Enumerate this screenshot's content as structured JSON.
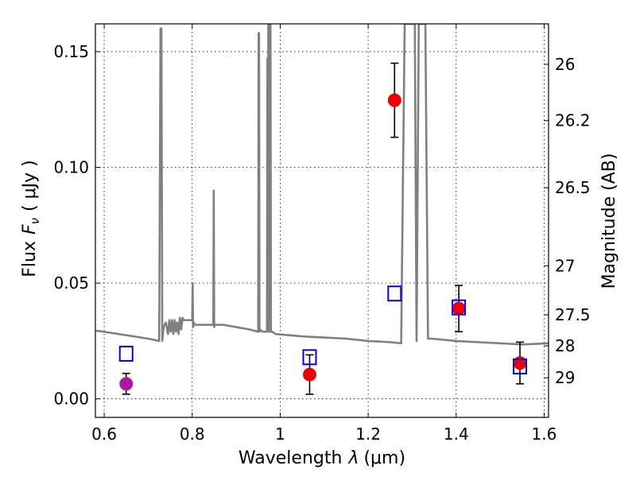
{
  "chart_data": {
    "type": "scatter",
    "xlabel_prefix": "Wavelength",
    "xlabel_symbol": "λ",
    "xlabel_unit": "(μm)",
    "ylabel_prefix": "Flux",
    "ylabel_symbol": "F",
    "ylabel_subscript": "ν",
    "ylabel_unit": "( μJy )",
    "y2label": "Magnitude (AB)",
    "xlim": [
      0.58,
      1.61
    ],
    "ylim": [
      -0.008,
      0.162
    ],
    "xticks": [
      0.6,
      0.8,
      1.0,
      1.2,
      1.4,
      1.6
    ],
    "xtick_labels": [
      "0.6",
      "0.8",
      "1",
      "1.2",
      "1.4",
      "1.6"
    ],
    "yticks": [
      0.0,
      0.05,
      0.1,
      0.15
    ],
    "ytick_labels": [
      "0.00",
      "0.05",
      "0.10",
      "0.15"
    ],
    "magnitude_ticks": [
      {
        "label": "26",
        "flux": 0.1445
      },
      {
        "label": "26.2",
        "flux": 0.1202
      },
      {
        "label": "26.5",
        "flux": 0.0912
      },
      {
        "label": "27",
        "flux": 0.0575
      },
      {
        "label": "27.5",
        "flux": 0.0363
      },
      {
        "label": "28",
        "flux": 0.0229
      },
      {
        "label": "29",
        "flux": 0.0091
      }
    ],
    "grid": true,
    "series": [
      {
        "kind": "model_spectrum",
        "color": "#808080",
        "x": [
          0.58,
          0.65,
          0.7,
          0.725,
          0.728,
          0.73,
          0.732,
          0.735,
          0.74,
          0.745,
          0.748,
          0.751,
          0.754,
          0.757,
          0.76,
          0.763,
          0.766,
          0.769,
          0.772,
          0.775,
          0.778,
          0.781,
          0.784,
          0.787,
          0.8,
          0.801,
          0.802,
          0.803,
          0.804,
          0.805,
          0.806,
          0.85,
          0.848,
          0.849,
          0.85,
          0.851,
          0.852,
          0.855,
          0.86,
          0.87,
          0.9,
          0.93,
          0.95,
          0.951,
          0.952,
          0.953,
          0.954,
          0.96,
          0.97,
          0.971,
          0.972,
          0.973,
          0.974,
          0.976,
          0.977,
          0.978,
          0.979,
          0.98,
          0.982,
          0.99,
          1.05,
          1.1,
          1.15,
          1.2,
          1.25,
          1.275,
          1.283,
          1.29,
          1.295,
          1.3,
          1.303,
          1.306,
          1.31,
          1.315,
          1.318,
          1.321,
          1.325,
          1.33,
          1.336,
          1.345,
          1.4,
          1.45,
          1.5,
          1.55,
          1.61
        ],
        "y": [
          0.0295,
          0.0275,
          0.026,
          0.025,
          0.16,
          0.16,
          0.025,
          0.031,
          0.033,
          0.028,
          0.034,
          0.029,
          0.034,
          0.028,
          0.034,
          0.029,
          0.033,
          0.028,
          0.035,
          0.03,
          0.035,
          0.034,
          0.034,
          0.034,
          0.034,
          0.05,
          0.031,
          0.033,
          0.033,
          0.032,
          0.032,
          0.032,
          0.032,
          0.09,
          0.031,
          0.032,
          0.032,
          0.032,
          0.032,
          0.032,
          0.031,
          0.03,
          0.029,
          0.158,
          0.158,
          0.029,
          0.03,
          0.029,
          0.029,
          0.147,
          0.029,
          0.162,
          0.162,
          0.029,
          0.162,
          0.162,
          0.029,
          0.029,
          0.029,
          0.028,
          0.027,
          0.0265,
          0.026,
          0.025,
          0.0245,
          0.024,
          0.162,
          0.162,
          0.162,
          0.162,
          0.162,
          0.162,
          0.025,
          0.162,
          0.162,
          0.162,
          0.162,
          0.162,
          0.026,
          0.026,
          0.025,
          0.0245,
          0.024,
          0.0235,
          0.024
        ]
      },
      {
        "kind": "observed",
        "marker": "circle",
        "points": [
          {
            "x": 0.65,
            "y": 0.0065,
            "err": 0.0045,
            "color": "#b0169b"
          },
          {
            "x": 1.067,
            "y": 0.0105,
            "err": 0.0085,
            "color": "#ee0000"
          },
          {
            "x": 1.26,
            "y": 0.129,
            "err": 0.016,
            "color": "#ee0000"
          },
          {
            "x": 1.406,
            "y": 0.039,
            "err": 0.01,
            "color": "#ee0000"
          },
          {
            "x": 1.545,
            "y": 0.0155,
            "err": 0.009,
            "color": "#ee0000"
          }
        ]
      },
      {
        "kind": "model_photometry",
        "marker": "open-square",
        "color": "#0000ee",
        "points": [
          {
            "x": 0.65,
            "y": 0.0195
          },
          {
            "x": 1.067,
            "y": 0.018
          },
          {
            "x": 1.26,
            "y": 0.0455
          },
          {
            "x": 1.406,
            "y": 0.0395
          },
          {
            "x": 1.545,
            "y": 0.014
          }
        ]
      }
    ]
  }
}
